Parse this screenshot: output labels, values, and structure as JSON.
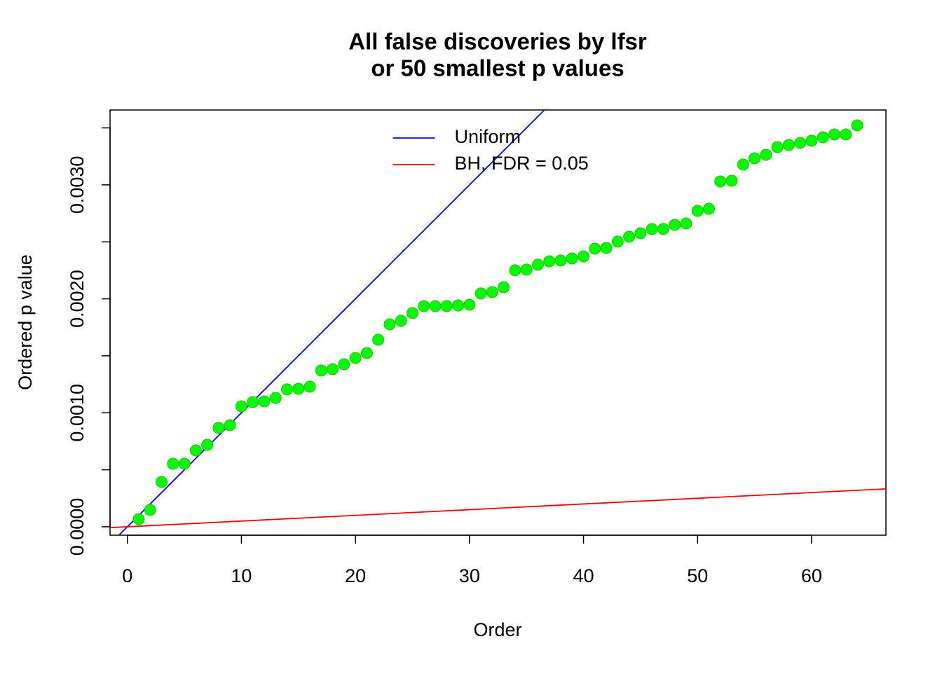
{
  "chart_data": {
    "type": "scatter",
    "title": [
      "All false discoveries by lfsr",
      "or 50 smallest p values"
    ],
    "xlabel": "Order",
    "ylabel": "Ordered p value",
    "x": [
      1,
      2,
      3,
      4,
      5,
      6,
      7,
      8,
      9,
      10,
      11,
      12,
      13,
      14,
      15,
      16,
      17,
      18,
      19,
      20,
      21,
      22,
      23,
      24,
      25,
      26,
      27,
      28,
      29,
      30,
      31,
      32,
      33,
      34,
      35,
      36,
      37,
      38,
      39,
      40,
      41,
      42,
      43,
      44,
      45,
      46,
      47,
      48,
      49,
      50,
      51,
      52,
      53,
      54,
      55,
      56,
      57,
      58,
      59,
      60,
      61,
      62,
      63,
      64
    ],
    "series": [
      {
        "color": "#00ff00",
        "values": [
          6.76e-05,
          0.000148,
          0.000393,
          0.000553,
          0.000553,
          0.00067,
          0.000719,
          0.000867,
          0.000891,
          0.001057,
          0.001094,
          0.0011,
          0.001131,
          0.001205,
          0.001211,
          0.001229,
          0.001371,
          0.001383,
          0.001426,
          0.001481,
          0.001524,
          0.001641,
          0.001776,
          0.001807,
          0.001875,
          0.001936,
          0.001936,
          0.001936,
          0.001942,
          0.001948,
          0.002047,
          0.002059,
          0.002102,
          0.00225,
          0.002256,
          0.002299,
          0.002329,
          0.002336,
          0.002354,
          0.002372,
          0.00244,
          0.002446,
          0.002502,
          0.002545,
          0.002575,
          0.002612,
          0.002612,
          0.002649,
          0.002661,
          0.002772,
          0.00279,
          0.00303,
          0.003036,
          0.003178,
          0.003233,
          0.003264,
          0.003331,
          0.00335,
          0.003368,
          0.003387,
          0.003417,
          0.003442,
          0.003442,
          0.003522
        ]
      }
    ],
    "lines": [
      {
        "name": "Uniform",
        "color": "#0000ff",
        "intercept": 0,
        "slope": 0.0001
      },
      {
        "name": "BH, FDR = 0.05",
        "color": "#ff0000",
        "intercept": 0,
        "slope": 5e-06
      }
    ],
    "legend_position": "top",
    "xlim": [
      -1.52,
      66.52
    ],
    "xticks": [
      0,
      10,
      20,
      30,
      40,
      50,
      60
    ],
    "ylim": [
      -7.4e-05,
      0.003657
    ],
    "yticks": [
      {
        "value": 0,
        "label": "0.0000"
      },
      {
        "value": 0.001,
        "label": "0.0010"
      },
      {
        "value": 0.002,
        "label": "0.0020"
      },
      {
        "value": 0.003,
        "label": "0.0030"
      }
    ],
    "yticks_minor": [
      0.0005,
      0.0015,
      0.0025,
      0.0035
    ]
  }
}
